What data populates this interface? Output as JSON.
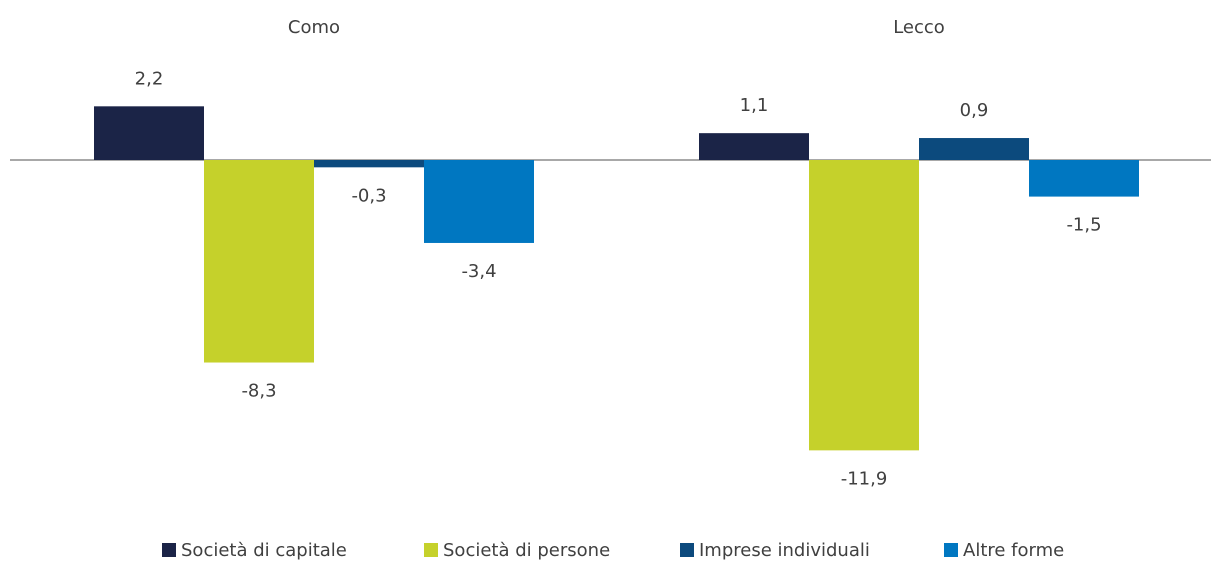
{
  "chart_data": {
    "type": "bar",
    "categories": [
      "Como",
      "Lecco"
    ],
    "series": [
      {
        "name": "Società di capitale",
        "color": "#1b2447",
        "values": [
          2.2,
          1.1
        ],
        "value_labels": [
          "2,2",
          "1,1"
        ]
      },
      {
        "name": "Società di persone",
        "color": "#c5d12b",
        "values": [
          -8.3,
          -11.9
        ],
        "value_labels": [
          "-8,3",
          "-11,9"
        ]
      },
      {
        "name": "Imprese individuali",
        "color": "#0c4a7d",
        "values": [
          -0.3,
          0.9
        ],
        "value_labels": [
          "-0,3",
          "0,9"
        ]
      },
      {
        "name": "Altre forme",
        "color": "#0077c1",
        "values": [
          -3.4,
          -1.5
        ],
        "value_labels": [
          "-3,4",
          "-1,5"
        ]
      }
    ],
    "legend": "bottom"
  }
}
